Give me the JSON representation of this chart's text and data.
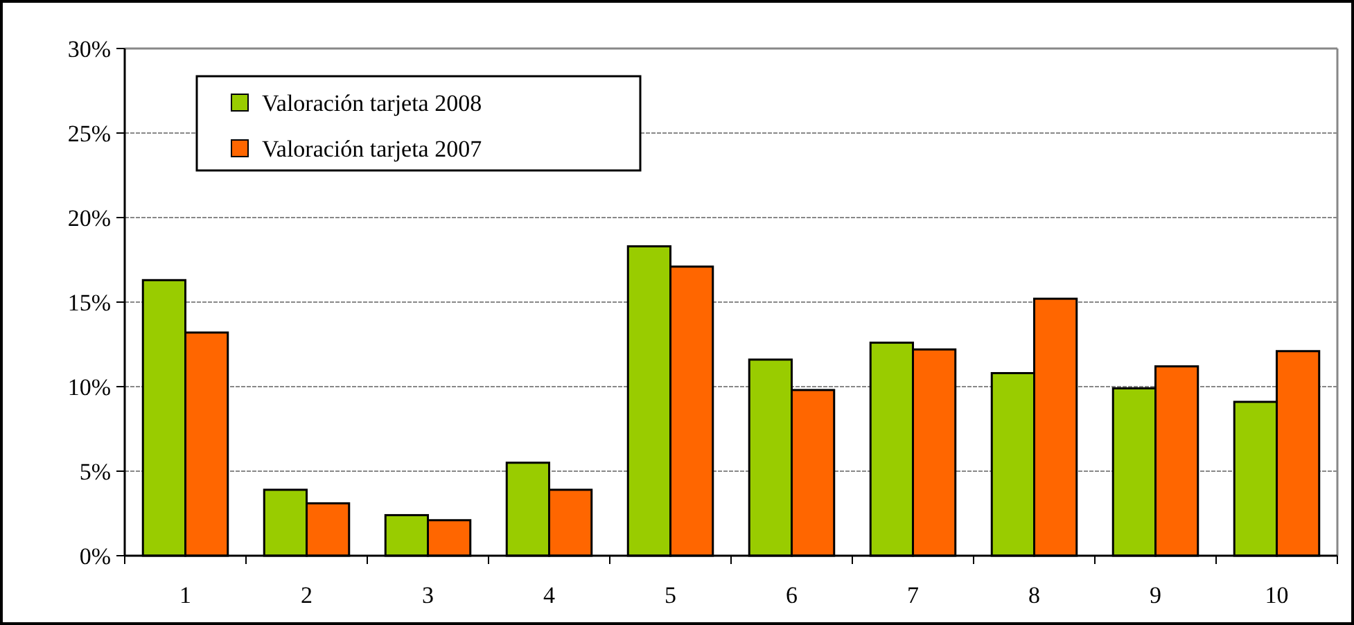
{
  "chart_data": {
    "type": "bar",
    "categories": [
      "1",
      "2",
      "3",
      "4",
      "5",
      "6",
      "7",
      "8",
      "9",
      "10"
    ],
    "series": [
      {
        "name": "Valoración tarjeta 2008",
        "color": "#99cc00",
        "values": [
          16.3,
          3.9,
          2.4,
          5.5,
          18.3,
          11.6,
          12.6,
          10.8,
          9.9,
          9.1
        ]
      },
      {
        "name": "Valoración tarjeta 2007",
        "color": "#ff6600",
        "values": [
          13.2,
          3.1,
          2.1,
          3.9,
          17.1,
          9.8,
          12.2,
          15.2,
          11.2,
          12.1
        ]
      }
    ],
    "ylim": [
      0,
      30
    ],
    "yticks": [
      {
        "value": 0,
        "label": "0%"
      },
      {
        "value": 5,
        "label": "5%"
      },
      {
        "value": 10,
        "label": "10%"
      },
      {
        "value": 15,
        "label": "15%"
      },
      {
        "value": 20,
        "label": "20%"
      },
      {
        "value": 25,
        "label": "25%"
      },
      {
        "value": 30,
        "label": "30%"
      }
    ],
    "grid": "y",
    "legend": "top left"
  }
}
